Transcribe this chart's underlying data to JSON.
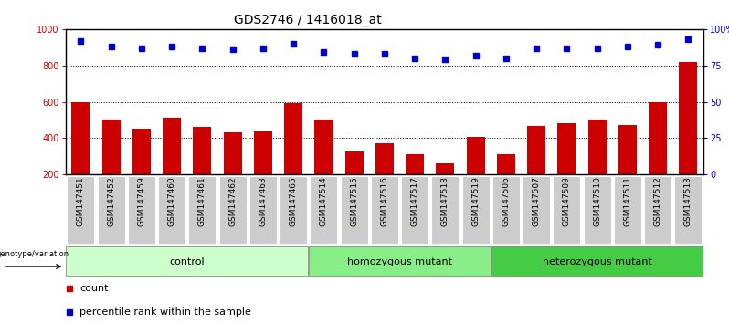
{
  "title": "GDS2746 / 1416018_at",
  "categories": [
    "GSM147451",
    "GSM147452",
    "GSM147459",
    "GSM147460",
    "GSM147461",
    "GSM147462",
    "GSM147463",
    "GSM147465",
    "GSM147514",
    "GSM147515",
    "GSM147516",
    "GSM147517",
    "GSM147518",
    "GSM147519",
    "GSM147506",
    "GSM147507",
    "GSM147509",
    "GSM147510",
    "GSM147511",
    "GSM147512",
    "GSM147513"
  ],
  "bar_values": [
    600,
    500,
    450,
    510,
    460,
    430,
    435,
    595,
    500,
    325,
    370,
    310,
    260,
    405,
    310,
    465,
    480,
    500,
    470,
    600,
    820
  ],
  "percentile_values": [
    92,
    88,
    87,
    88,
    87,
    86,
    87,
    90,
    84,
    83,
    83,
    80,
    79,
    82,
    80,
    87,
    87,
    87,
    88,
    89,
    93
  ],
  "groups": [
    {
      "label": "control",
      "start": 0,
      "end": 8,
      "color": "#ccffcc"
    },
    {
      "label": "homozygous mutant",
      "start": 8,
      "end": 14,
      "color": "#88ee88"
    },
    {
      "label": "heterozygous mutant",
      "start": 14,
      "end": 21,
      "color": "#44cc44"
    }
  ],
  "bar_color": "#cc0000",
  "dot_color": "#0000cc",
  "ylim_left": [
    200,
    1000
  ],
  "ylim_right": [
    0,
    100
  ],
  "yticks_left": [
    200,
    400,
    600,
    800,
    1000
  ],
  "yticks_right": [
    0,
    25,
    50,
    75,
    100
  ],
  "grid_values": [
    400,
    600,
    800
  ],
  "tick_fontsize": 7,
  "label_fontsize": 6.5,
  "bar_width": 0.6,
  "fig_width": 7.98,
  "fig_height": 3.54
}
